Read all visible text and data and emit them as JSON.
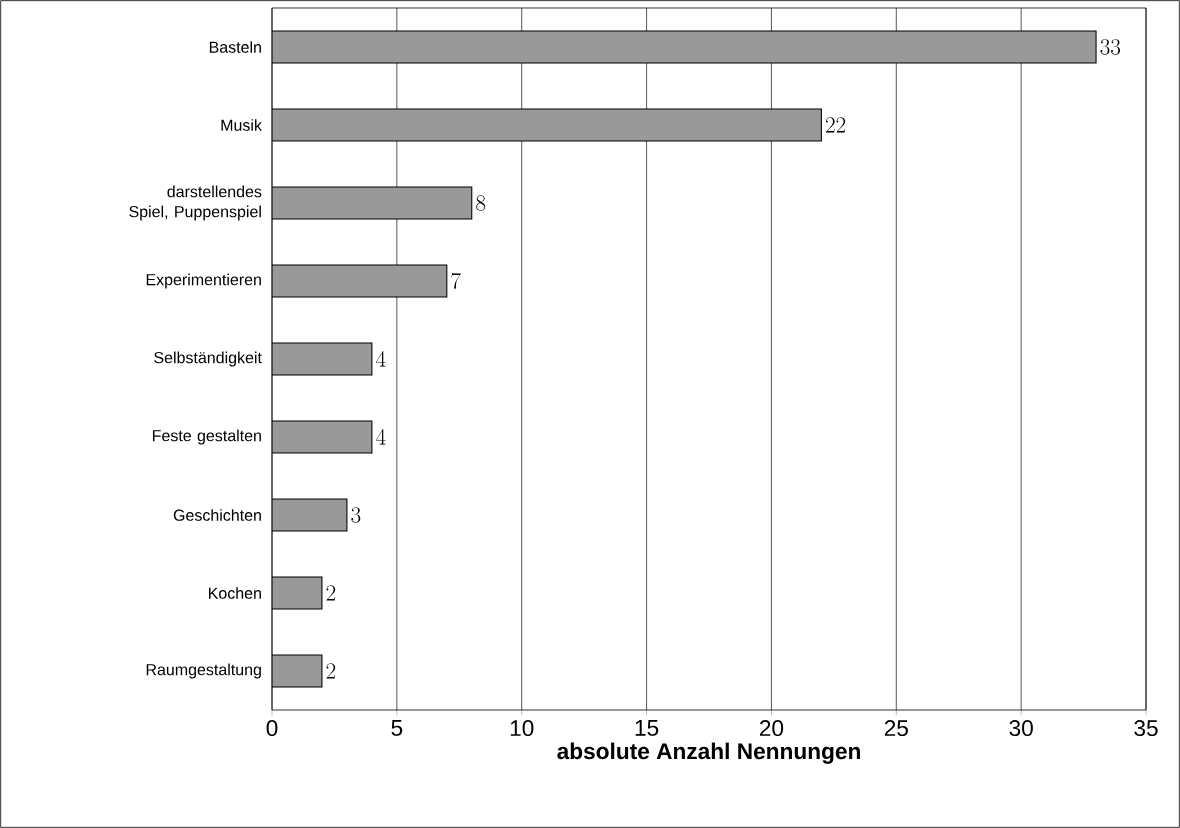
{
  "chart_data": {
    "type": "bar",
    "orientation": "horizontal",
    "xlabel": "absolute Anzahl Nennungen",
    "categories": [
      "Basteln",
      "Musik",
      "darstellendes Spiel, Puppenspiel",
      "Experimentieren",
      "Selbständigkeit",
      "Feste gestalten",
      "Geschichten",
      "Kochen",
      "Raumgestaltung"
    ],
    "values": [
      33,
      22,
      8,
      7,
      4,
      4,
      3,
      2,
      2
    ],
    "color": "#999999",
    "xlim": [
      0,
      35
    ],
    "xticks": [
      0,
      5,
      10,
      15,
      20,
      25,
      30,
      35
    ],
    "grid": "x",
    "data_labels": true
  }
}
